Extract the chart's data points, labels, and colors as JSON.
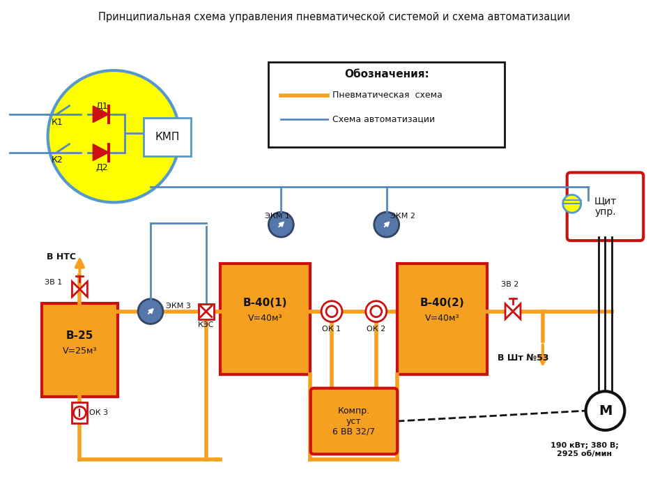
{
  "title": "Принципиальная схема управления пневматической системой и схема автоматизации",
  "bg_color": "#ffffff",
  "orange": "#F5A020",
  "red": "#CC1010",
  "blue": "#5588BB",
  "yellow": "#FFFF00",
  "black": "#111111",
  "legend_title": "Обозначения:",
  "legend_orange": "Пневматическая  схема",
  "legend_blue": "Схема автоматизации",
  "v25_l1": "В-25",
  "v25_l2": "V=25м³",
  "v401_l1": "В-40(1)",
  "v401_l2": "V=40м³",
  "v402_l1": "В-40(2)",
  "v402_l2": "V=40м³",
  "shield": "Щит\nупр.",
  "motor": "М",
  "motor_specs": "190 кВт; 380 В;\n2925 об/мин",
  "comp": "Компр.\nуст\n6 ВВ 32/7",
  "v_ntc": "В НТС",
  "v_sht": "В Шт №53",
  "zv1": "ЗВ 1",
  "zv2": "ЗВ 2",
  "ok1": "ОК 1",
  "ok2": "ОК 2",
  "ok3": "ОК 3",
  "ekm1": "ЭКМ 1",
  "ekm2": "ЭКМ 2",
  "ekm3": "ЭКМ 3",
  "kes": "КЭС",
  "kmp": "КМП",
  "d1": "Д1",
  "d2": "Д2",
  "k1": "К1",
  "k2": "К2"
}
